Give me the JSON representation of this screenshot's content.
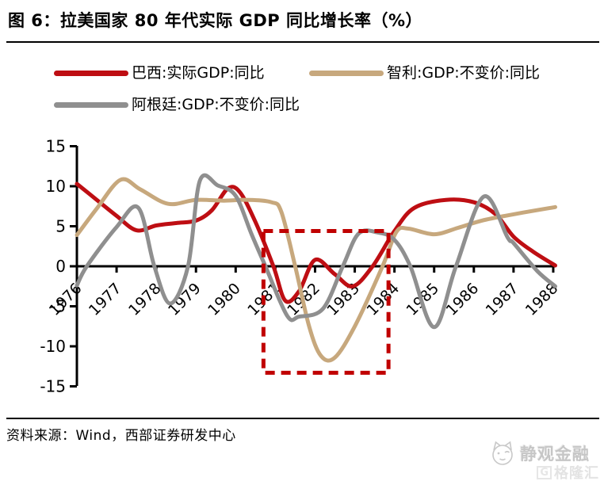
{
  "title": "图 6：拉美国家 80 年代实际 GDP 同比增长率（%）",
  "source": "资料来源：Wind，西部证券研发中心",
  "watermark": {
    "brand": "静观金融",
    "platform": "格隆汇",
    "platform_prefix": "G"
  },
  "colors": {
    "brazil": "#be0e13",
    "chile": "#c7a87d",
    "argentina": "#8f8f8f",
    "highlight_box": "#c00000",
    "axis": "#000000",
    "watermark_gray": "#c6c6c6"
  },
  "legend": {
    "items": [
      {
        "series": "brazil",
        "label": "巴西:实际GDP:同比"
      },
      {
        "series": "chile",
        "label": "智利:GDP:不变价:同比"
      },
      {
        "series": "argentina",
        "label": "阿根廷:GDP:不变价:同比"
      }
    ]
  },
  "chart_data": {
    "type": "line",
    "title": "拉美国家 80 年代实际 GDP 同比增长率（%）",
    "xlabel": "",
    "ylabel": "",
    "xlim": [
      1976,
      1988.1
    ],
    "ylim": [
      -15,
      15
    ],
    "grid": false,
    "legend_position": "top-left",
    "x_ticks": [
      1976,
      1977,
      1978,
      1979,
      1980,
      1981,
      1982,
      1983,
      1984,
      1985,
      1986,
      1987,
      1988
    ],
    "y_ticks": [
      15,
      10,
      5,
      0,
      -5,
      -10,
      -15
    ],
    "series": [
      {
        "name": "巴西:实际GDP:同比",
        "key": "brazil",
        "points": [
          [
            1976.0,
            10.3
          ],
          [
            1976.5,
            8.3
          ],
          [
            1977.0,
            6.3
          ],
          [
            1977.5,
            4.5
          ],
          [
            1978.0,
            5.1
          ],
          [
            1978.5,
            5.4
          ],
          [
            1979.0,
            5.7
          ],
          [
            1979.4,
            7.0
          ],
          [
            1979.8,
            9.7
          ],
          [
            1980.1,
            9.3
          ],
          [
            1980.5,
            5.5
          ],
          [
            1980.95,
            0.0
          ],
          [
            1981.25,
            -4.3
          ],
          [
            1981.6,
            -3.1
          ],
          [
            1982.0,
            0.8
          ],
          [
            1982.5,
            -1.0
          ],
          [
            1982.95,
            -2.5
          ],
          [
            1983.45,
            0.0
          ],
          [
            1984.0,
            4.4
          ],
          [
            1984.5,
            7.3
          ],
          [
            1985.3,
            8.3
          ],
          [
            1986.0,
            8.0
          ],
          [
            1986.55,
            6.5
          ],
          [
            1987.0,
            3.7
          ],
          [
            1987.5,
            1.8
          ],
          [
            1988.05,
            0.1
          ]
        ]
      },
      {
        "name": "智利:GDP:不变价:同比",
        "key": "chile",
        "points": [
          [
            1976.0,
            3.9
          ],
          [
            1976.5,
            7.2
          ],
          [
            1977.1,
            10.8
          ],
          [
            1977.6,
            9.6
          ],
          [
            1978.3,
            7.8
          ],
          [
            1979.0,
            8.3
          ],
          [
            1979.7,
            8.2
          ],
          [
            1980.3,
            8.3
          ],
          [
            1980.9,
            8.0
          ],
          [
            1981.15,
            6.8
          ],
          [
            1981.5,
            0.0
          ],
          [
            1981.85,
            -7.5
          ],
          [
            1982.15,
            -11.2
          ],
          [
            1982.5,
            -11.4
          ],
          [
            1983.0,
            -7.5
          ],
          [
            1983.7,
            0.0
          ],
          [
            1984.05,
            4.3
          ],
          [
            1984.35,
            4.7
          ],
          [
            1985.0,
            4.0
          ],
          [
            1985.6,
            4.8
          ],
          [
            1986.2,
            5.7
          ],
          [
            1987.0,
            6.5
          ],
          [
            1988.05,
            7.4
          ]
        ]
      },
      {
        "name": "阿根廷:GDP:不变价:同比",
        "key": "argentina",
        "points": [
          [
            1976.0,
            -2.4
          ],
          [
            1976.25,
            0.0
          ],
          [
            1977.0,
            4.9
          ],
          [
            1977.55,
            7.3
          ],
          [
            1977.95,
            0.0
          ],
          [
            1978.35,
            -4.65
          ],
          [
            1978.8,
            0.0
          ],
          [
            1979.1,
            10.7
          ],
          [
            1979.55,
            10.1
          ],
          [
            1980.0,
            8.8
          ],
          [
            1980.4,
            4.0
          ],
          [
            1980.75,
            0.0
          ],
          [
            1981.3,
            -6.2
          ],
          [
            1981.6,
            -6.3
          ],
          [
            1982.2,
            -5.3
          ],
          [
            1982.7,
            0.0
          ],
          [
            1983.1,
            4.1
          ],
          [
            1983.6,
            4.2
          ],
          [
            1984.0,
            3.3
          ],
          [
            1984.4,
            0.0
          ],
          [
            1985.0,
            -7.6
          ],
          [
            1985.55,
            0.0
          ],
          [
            1986.25,
            8.7
          ],
          [
            1986.85,
            3.6
          ],
          [
            1987.0,
            2.9
          ],
          [
            1987.6,
            -0.6
          ],
          [
            1988.05,
            -2.5
          ]
        ]
      }
    ],
    "highlight_box": {
      "x0": 1980.7,
      "x1": 1983.85,
      "y_top": 4.4,
      "y_bottom": -13.3
    }
  }
}
